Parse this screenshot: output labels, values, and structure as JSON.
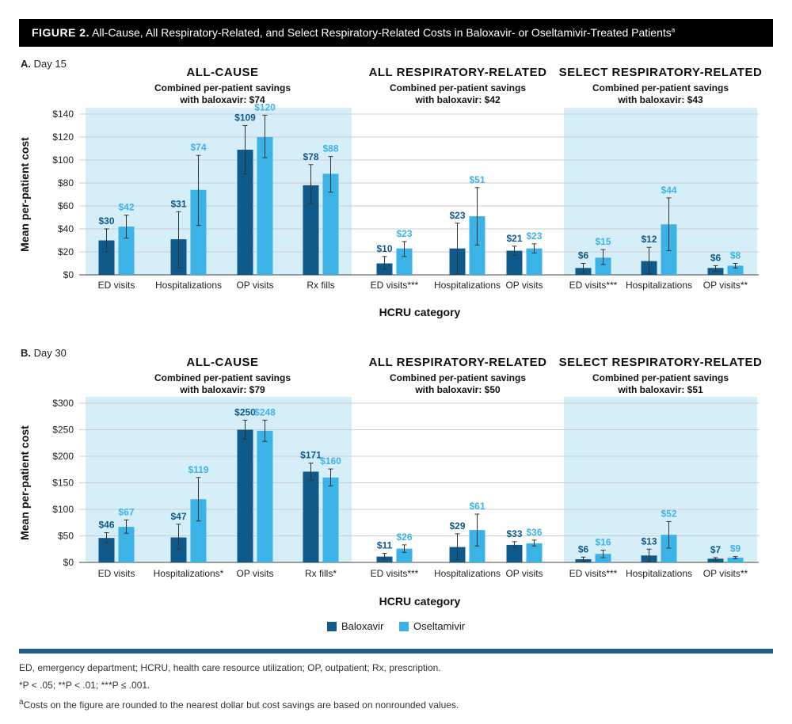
{
  "figure": {
    "label": "FIGURE 2.",
    "title": "All-Cause, All Respiratory-Related, and Select Respiratory-Related Costs in Baloxavir- or Oseltamivir-Treated Patients",
    "title_sup": "a"
  },
  "colors": {
    "baloxavir": "#0f5a8a",
    "oseltamivir": "#3bb3e6",
    "shade": "#d6eef8",
    "grid": "#cccccc",
    "rule": "#1d5f8e"
  },
  "legend": {
    "baloxavir": "Baloxavir",
    "oseltamivir": "Oseltamivir"
  },
  "footnotes": {
    "abbrev": "ED, emergency department; HCRU, health care resource utilization; OP, outpatient; Rx, prescription.",
    "p_values": "*P < .05; **P < .01; ***P ≤ .001.",
    "rounding_sup": "a",
    "rounding": "Costs on the figure are rounded to the nearest dollar but cost savings are based on nonrounded values."
  },
  "chart_data": [
    {
      "type": "bar",
      "panel_letter": "A.",
      "panel_label": "Day 15",
      "ylabel": "Mean per-patient cost",
      "xlabel": "HCRU category",
      "ylim": [
        0,
        140
      ],
      "yticks": [
        0,
        20,
        40,
        60,
        80,
        100,
        120,
        140
      ],
      "ytick_labels": [
        "$0",
        "$20",
        "$40",
        "$60",
        "$80",
        "$100",
        "$120",
        "$140"
      ],
      "series_names": [
        "Baloxavir",
        "Oseltamivir"
      ],
      "groups": [
        {
          "title": "ALL-CAUSE",
          "subtitle_1": "Combined per-patient savings",
          "subtitle_2": "with baloxavir: $74",
          "shaded": true,
          "categories": [
            "ED visits",
            "Hospitalizations",
            "OP visits",
            "Rx fills"
          ],
          "baloxavir": [
            30,
            31,
            109,
            78
          ],
          "oseltamivir": [
            42,
            74,
            120,
            88
          ],
          "baloxavir_labels": [
            "$30",
            "$31",
            "$109",
            "$78"
          ],
          "oseltamivir_labels": [
            "$42",
            "$74",
            "$120",
            "$88"
          ],
          "baloxavir_err": [
            [
              20,
              40
            ],
            [
              6,
              55
            ],
            [
              88,
              130
            ],
            [
              62,
              96
            ]
          ],
          "oseltamivir_err": [
            [
              32,
              52
            ],
            [
              43,
              104
            ],
            [
              102,
              139
            ],
            [
              72,
              103
            ]
          ]
        },
        {
          "title": "ALL RESPIRATORY-RELATED",
          "subtitle_1": "Combined per-patient savings",
          "subtitle_2": "with baloxavir: $42",
          "shaded": false,
          "categories": [
            "ED visits***",
            "Hospitalizations",
            "OP visits"
          ],
          "baloxavir": [
            10,
            23,
            21
          ],
          "oseltamivir": [
            23,
            51,
            23
          ],
          "baloxavir_labels": [
            "$10",
            "$23",
            "$21"
          ],
          "oseltamivir_labels": [
            "$23",
            "$51",
            "$23"
          ],
          "baloxavir_err": [
            [
              5,
              16
            ],
            [
              1,
              45
            ],
            [
              17,
              25
            ]
          ],
          "oseltamivir_err": [
            [
              16,
              29
            ],
            [
              26,
              76
            ],
            [
              19,
              27
            ]
          ]
        },
        {
          "title": "SELECT RESPIRATORY-RELATED",
          "subtitle_1": "Combined per-patient savings",
          "subtitle_2": "with baloxavir: $43",
          "shaded": true,
          "categories": [
            "ED visits***",
            "Hospitalizations",
            "OP visits**"
          ],
          "baloxavir": [
            6,
            12,
            6
          ],
          "oseltamivir": [
            15,
            44,
            8
          ],
          "baloxavir_labels": [
            "$6",
            "$12",
            "$6"
          ],
          "oseltamivir_labels": [
            "$15",
            "$44",
            "$8"
          ],
          "baloxavir_err": [
            [
              2,
              10
            ],
            [
              1,
              24
            ],
            [
              3,
              8
            ]
          ],
          "oseltamivir_err": [
            [
              9,
              22
            ],
            [
              21,
              67
            ],
            [
              6,
              10
            ]
          ]
        }
      ]
    },
    {
      "type": "bar",
      "panel_letter": "B.",
      "panel_label": "Day 30",
      "ylabel": "Mean per-patient cost",
      "xlabel": "HCRU category",
      "ylim": [
        0,
        300
      ],
      "yticks": [
        0,
        50,
        100,
        150,
        200,
        250,
        300
      ],
      "ytick_labels": [
        "$0",
        "$50",
        "$100",
        "$150",
        "$200",
        "$250",
        "$300"
      ],
      "series_names": [
        "Baloxavir",
        "Oseltamivir"
      ],
      "groups": [
        {
          "title": "ALL-CAUSE",
          "subtitle_1": "Combined per-patient savings",
          "subtitle_2": "with baloxavir: $79",
          "shaded": true,
          "categories": [
            "ED visits",
            "Hospitalizations*",
            "OP visits",
            "Rx fills*"
          ],
          "baloxavir": [
            46,
            47,
            250,
            171
          ],
          "oseltamivir": [
            67,
            119,
            248,
            160
          ],
          "baloxavir_labels": [
            "$46",
            "$47",
            "$250",
            "$171"
          ],
          "oseltamivir_labels": [
            "$67",
            "$119",
            "$248",
            "$160"
          ],
          "baloxavir_err": [
            [
              37,
              56
            ],
            [
              25,
              72
            ],
            [
              232,
              268
            ],
            [
              155,
              187
            ]
          ],
          "oseltamivir_err": [
            [
              55,
              80
            ],
            [
              78,
              160
            ],
            [
              228,
              268
            ],
            [
              144,
              176
            ]
          ]
        },
        {
          "title": "ALL RESPIRATORY-RELATED",
          "subtitle_1": "Combined per-patient savings",
          "subtitle_2": "with baloxavir: $50",
          "shaded": false,
          "categories": [
            "ED visits***",
            "Hospitalizations",
            "OP visits"
          ],
          "baloxavir": [
            11,
            29,
            33
          ],
          "oseltamivir": [
            26,
            61,
            36
          ],
          "baloxavir_labels": [
            "$11",
            "$29",
            "$33"
          ],
          "oseltamivir_labels": [
            "$26",
            "$61",
            "$36"
          ],
          "baloxavir_err": [
            [
              6,
              17
            ],
            [
              5,
              54
            ],
            [
              28,
              39
            ]
          ],
          "oseltamivir_err": [
            [
              19,
              33
            ],
            [
              31,
              91
            ],
            [
              31,
              42
            ]
          ]
        },
        {
          "title": "SELECT RESPIRATORY-RELATED",
          "subtitle_1": "Combined per-patient savings",
          "subtitle_2": "with baloxavir: $51",
          "shaded": true,
          "categories": [
            "ED visits***",
            "Hospitalizations",
            "OP visits**"
          ],
          "baloxavir": [
            6,
            13,
            7
          ],
          "oseltamivir": [
            16,
            52,
            9
          ],
          "baloxavir_labels": [
            "$6",
            "$13",
            "$7"
          ],
          "oseltamivir_labels": [
            "$16",
            "$52",
            "$9"
          ],
          "baloxavir_err": [
            [
              2,
              10
            ],
            [
              2,
              25
            ],
            [
              4,
              9
            ]
          ],
          "oseltamivir_err": [
            [
              9,
              23
            ],
            [
              27,
              77
            ],
            [
              7,
              11
            ]
          ]
        }
      ]
    }
  ]
}
